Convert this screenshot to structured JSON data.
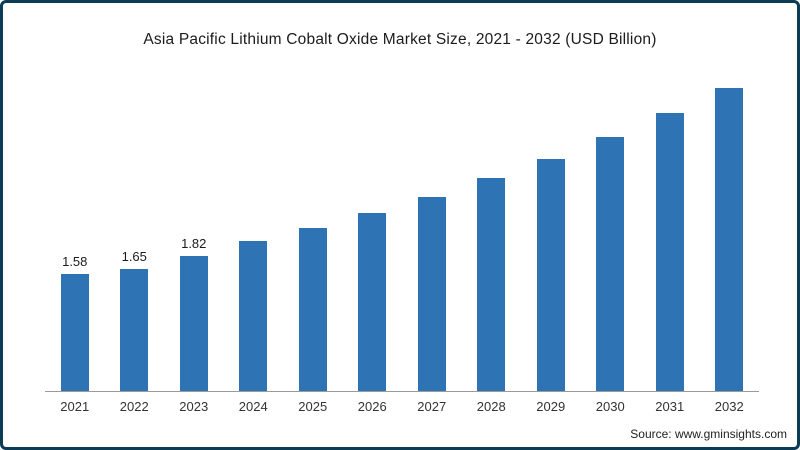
{
  "chart_data": {
    "type": "bar",
    "title": "Asia Pacific Lithium Cobalt Oxide Market Size, 2021 - 2032 (USD Billion)",
    "categories": [
      "2021",
      "2022",
      "2023",
      "2024",
      "2025",
      "2026",
      "2027",
      "2028",
      "2029",
      "2030",
      "2031",
      "2032"
    ],
    "values": [
      1.58,
      1.65,
      1.82,
      2.03,
      2.2,
      2.41,
      2.63,
      2.88,
      3.14,
      3.44,
      3.76,
      4.1
    ],
    "data_labels": [
      "1.58",
      "1.65",
      "1.82",
      "",
      "",
      "",
      "",
      "",
      "",
      "",
      "",
      ""
    ],
    "xlabel": "",
    "ylabel": "",
    "ylim": [
      0,
      4.6
    ],
    "bar_color": "#2e74b5",
    "grid": false,
    "legend": false,
    "axis_line_color": "#9b9b9b"
  },
  "footer": {
    "source": "Source: www.gminsights.com"
  }
}
